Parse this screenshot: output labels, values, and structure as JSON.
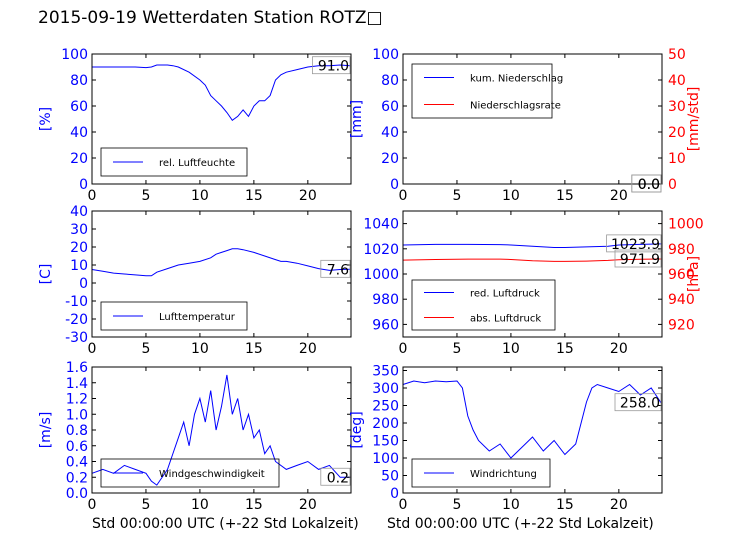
{
  "title": "2015-09-19 Wetterdaten Station ROTZ□",
  "chart_data": [
    {
      "id": "humidity",
      "type": "line",
      "xlim": [
        0,
        24
      ],
      "ylim": [
        0,
        100
      ],
      "xticks": [
        0,
        5,
        10,
        15,
        20
      ],
      "yticks": [
        0,
        20,
        40,
        60,
        80,
        100
      ],
      "ylabel": "[%]",
      "xlabel": "",
      "grid": false,
      "legend_position": "lower-left",
      "last_value_label": "91.0",
      "series": [
        {
          "name": "rel. Luftfeuchte",
          "color": "#0000ff",
          "axis": "left",
          "x": [
            0,
            1,
            2,
            3,
            4,
            5,
            5.5,
            6,
            7,
            7.5,
            8,
            9,
            10,
            10.5,
            11,
            11.5,
            12,
            12.5,
            13,
            13.5,
            14,
            14.5,
            15,
            15.5,
            16,
            16.5,
            17,
            17.5,
            18,
            19,
            20,
            21,
            22,
            23,
            23.9
          ],
          "y": [
            90,
            90,
            90,
            90,
            90,
            89.5,
            90,
            91.5,
            91.5,
            91,
            90,
            86,
            80,
            76,
            68,
            64,
            60,
            55,
            49,
            52,
            57,
            52,
            60,
            64,
            64,
            68,
            80,
            84,
            86,
            88,
            90,
            91,
            91,
            91.5,
            91
          ]
        }
      ]
    },
    {
      "id": "precip",
      "type": "line",
      "xlim": [
        0,
        24
      ],
      "ylim": [
        0,
        100
      ],
      "ylim_right": [
        0,
        50
      ],
      "xticks": [
        0,
        5,
        10,
        15,
        20
      ],
      "yticks": [
        0,
        20,
        40,
        60,
        80,
        100
      ],
      "yticks_right": [
        0,
        10,
        20,
        30,
        40,
        50
      ],
      "ylabel": "[mm]",
      "ylabel_right": "[mm/std]",
      "xlabel": "",
      "grid": false,
      "legend_position": "top-left",
      "last_value_label": "0.0",
      "last_value_label_2": "0.0",
      "series": [
        {
          "name": "kum. Niederschlag",
          "color": "#0000ff",
          "axis": "left",
          "x": [
            0,
            24
          ],
          "y": [
            0,
            0
          ]
        },
        {
          "name": "Niederschlagsrate",
          "color": "#ff0000",
          "axis": "right",
          "x": [
            0,
            24
          ],
          "y": [
            0,
            0
          ]
        }
      ]
    },
    {
      "id": "temperature",
      "type": "line",
      "xlim": [
        0,
        24
      ],
      "ylim": [
        -30,
        40
      ],
      "xticks": [
        0,
        5,
        10,
        15,
        20
      ],
      "yticks": [
        -30,
        -20,
        -10,
        0,
        10,
        20,
        30,
        40
      ],
      "ylabel": "[C]",
      "xlabel": "",
      "grid": false,
      "legend_position": "lower-left",
      "last_value_label": "7.6",
      "series": [
        {
          "name": "Lufttemperatur",
          "color": "#0000ff",
          "axis": "left",
          "x": [
            0,
            1,
            2,
            3,
            4,
            5,
            5.5,
            6,
            7,
            8,
            9,
            10,
            11,
            11.5,
            12,
            12.5,
            13,
            13.5,
            14,
            15,
            16,
            17,
            17.5,
            18,
            19,
            20,
            21,
            22,
            23,
            23.9
          ],
          "y": [
            7.5,
            6.5,
            5.5,
            5,
            4.5,
            4,
            4,
            6,
            8,
            10,
            11,
            12,
            14,
            16,
            17,
            18,
            19,
            19,
            18.5,
            17,
            15,
            13,
            12,
            12,
            11,
            9.5,
            8,
            7,
            7.5,
            7.6
          ]
        }
      ]
    },
    {
      "id": "pressure",
      "type": "line",
      "xlim": [
        0,
        24
      ],
      "ylim": [
        950,
        1050
      ],
      "ylim_right": [
        910,
        1010
      ],
      "xticks": [
        0,
        5,
        10,
        15,
        20
      ],
      "yticks": [
        960,
        980,
        1000,
        1020,
        1040
      ],
      "yticks_right": [
        920,
        940,
        960,
        980,
        1000
      ],
      "ylabel": "",
      "ylabel_right": "[hPa]",
      "xlabel": "",
      "grid": false,
      "legend_position": "lower-left",
      "last_value_label": "1023.9",
      "last_value_label_2": "971.9",
      "series": [
        {
          "name": "red. Luftdruck",
          "color": "#0000ff",
          "axis": "left",
          "x": [
            0,
            3,
            6,
            9,
            10,
            12,
            14,
            15,
            17,
            19,
            20,
            22,
            24
          ],
          "y": [
            1023,
            1023.5,
            1023.5,
            1023.3,
            1023,
            1022,
            1021,
            1021,
            1021.5,
            1022,
            1023,
            1023.5,
            1023.9
          ]
        },
        {
          "name": "abs. Luftdruck",
          "color": "#ff0000",
          "axis": "right",
          "x": [
            0,
            3,
            6,
            9,
            10,
            12,
            14,
            15,
            17,
            19,
            20,
            22,
            24
          ],
          "y": [
            971,
            971.5,
            971.8,
            971.8,
            971.5,
            970.5,
            970,
            970,
            970.2,
            970.8,
            971.3,
            971.7,
            971.9
          ]
        }
      ]
    },
    {
      "id": "wind_speed",
      "type": "line",
      "xlim": [
        0,
        24
      ],
      "ylim": [
        0,
        1.6
      ],
      "xticks": [
        0,
        5,
        10,
        15,
        20
      ],
      "yticks": [
        0,
        0.2,
        0.4,
        0.6,
        0.8,
        1.0,
        1.2,
        1.4,
        1.6
      ],
      "ylabel": "[m/s]",
      "xlabel": "Std 00:00:00 UTC (+-22 Std Lokalzeit)",
      "grid": false,
      "legend_position": "lower-left",
      "last_value_label": "0.2",
      "series": [
        {
          "name": "Windgeschwindigkeit",
          "color": "#0000ff",
          "axis": "left",
          "x": [
            0,
            1,
            2,
            3,
            4,
            5,
            5.5,
            6,
            7,
            7.5,
            8,
            8.5,
            9,
            9.5,
            10,
            10.5,
            11,
            11.5,
            12,
            12.5,
            13,
            13.5,
            14,
            14.5,
            15,
            15.5,
            16,
            16.5,
            17,
            18,
            19,
            20,
            21,
            22,
            23,
            24
          ],
          "y": [
            0.25,
            0.3,
            0.25,
            0.35,
            0.3,
            0.25,
            0.15,
            0.1,
            0.3,
            0.5,
            0.7,
            0.9,
            0.6,
            1.0,
            1.2,
            0.9,
            1.3,
            0.8,
            1.1,
            1.5,
            1.0,
            1.2,
            0.8,
            1.0,
            0.7,
            0.8,
            0.5,
            0.6,
            0.4,
            0.3,
            0.35,
            0.4,
            0.3,
            0.35,
            0.2,
            0.2
          ]
        }
      ]
    },
    {
      "id": "wind_direction",
      "type": "line",
      "xlim": [
        0,
        24
      ],
      "ylim": [
        0,
        360
      ],
      "xticks": [
        0,
        5,
        10,
        15,
        20
      ],
      "yticks": [
        0,
        50,
        100,
        150,
        200,
        250,
        300,
        350
      ],
      "ylabel": "[deg]",
      "xlabel": "Std 00:00:00 UTC (+-22 Std Lokalzeit)",
      "grid": false,
      "legend_position": "lower-left",
      "last_value_label": "258.0",
      "series": [
        {
          "name": "Windrichtung",
          "color": "#0000ff",
          "axis": "left",
          "x": [
            0,
            1,
            2,
            3,
            4,
            5,
            5.5,
            6,
            6.5,
            7,
            8,
            9,
            10,
            11,
            12,
            13,
            14,
            15,
            16,
            16.5,
            17,
            17.5,
            18,
            19,
            20,
            21,
            22,
            23,
            23.9
          ],
          "y": [
            310,
            320,
            315,
            320,
            318,
            320,
            300,
            220,
            180,
            150,
            120,
            140,
            100,
            130,
            160,
            120,
            150,
            110,
            140,
            200,
            260,
            300,
            310,
            300,
            290,
            310,
            280,
            300,
            258
          ]
        }
      ]
    }
  ]
}
